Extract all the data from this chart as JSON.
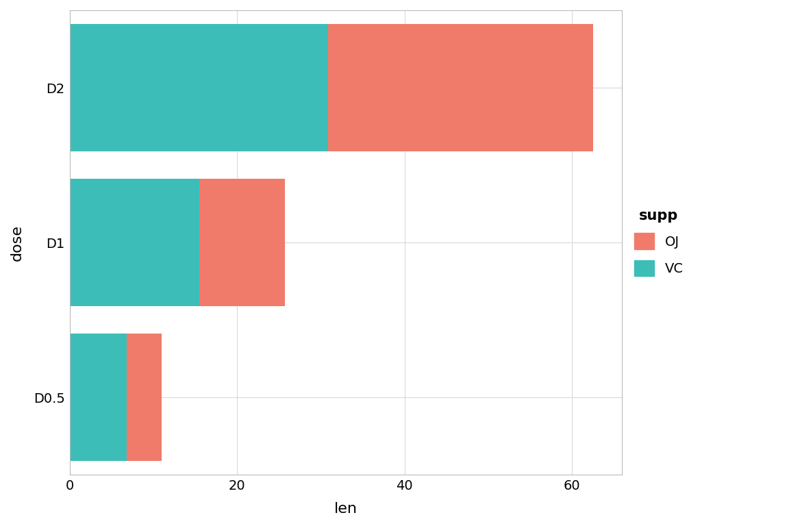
{
  "categories": [
    "D0.5",
    "D1",
    "D2"
  ],
  "VC_values": [
    6.8,
    15.5,
    30.9
  ],
  "OJ_values": [
    4.2,
    10.2,
    31.6
  ],
  "color_OJ": "#F07B6B",
  "color_VC": "#3DBDB8",
  "xlabel": "len",
  "ylabel": "dose",
  "legend_title": "supp",
  "legend_labels": [
    "OJ",
    "VC"
  ],
  "background_color": "#FFFFFF",
  "panel_background": "#FFFFFF",
  "grid_color": "#D9D9D9",
  "axis_text_size": 14,
  "axis_label_size": 16,
  "legend_title_size": 15,
  "legend_text_size": 14,
  "xlim": [
    0,
    66
  ],
  "xticks": [
    0,
    20,
    40,
    60
  ]
}
